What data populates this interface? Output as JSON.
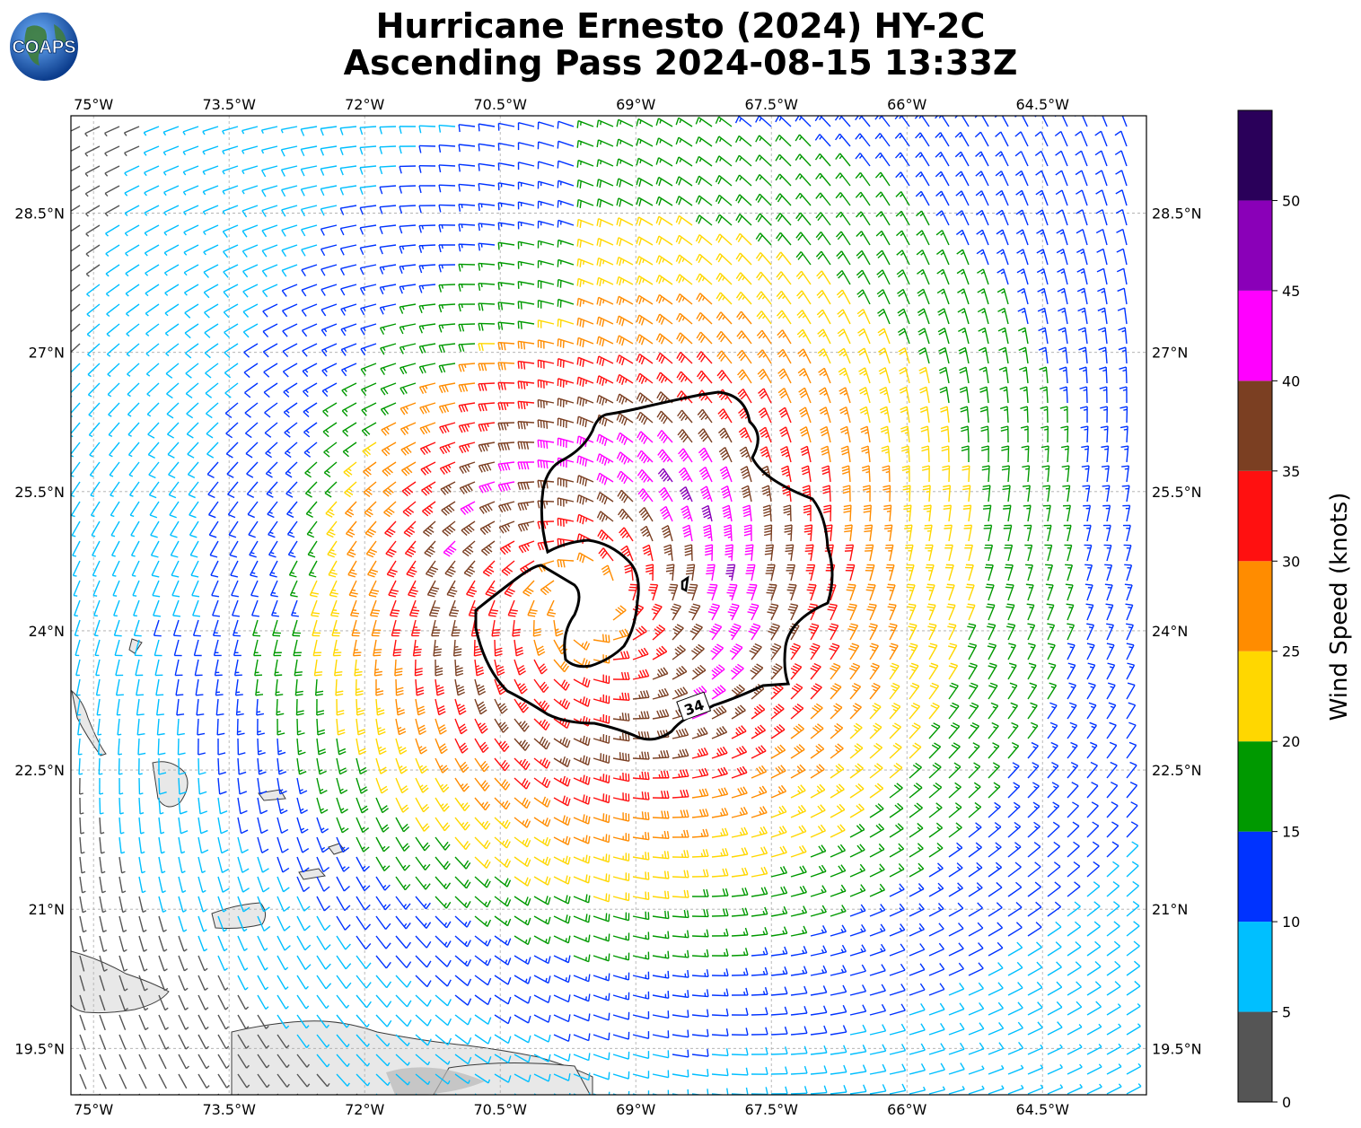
{
  "header": {
    "title_line1": "Hurricane Ernesto (2024) HY-2C",
    "title_line2": "Ascending Pass 2024-08-15 13:33Z",
    "logo_text": "COAPS"
  },
  "map": {
    "lon_range": [
      -75.25,
      -63.35
    ],
    "lat_range": [
      19.0,
      29.55
    ],
    "lon_ticks": [
      "75°W",
      "73.5°W",
      "72°W",
      "70.5°W",
      "69°W",
      "67.5°W",
      "66°W",
      "64.5°W"
    ],
    "lon_tick_values": [
      -75,
      -73.5,
      -72,
      -70.5,
      -69,
      -67.5,
      -66,
      -64.5
    ],
    "lat_ticks": [
      "28.5°N",
      "27°N",
      "25.5°N",
      "24°N",
      "22.5°N",
      "21°N",
      "19.5°N"
    ],
    "lat_tick_values": [
      28.5,
      27,
      25.5,
      24,
      22.5,
      21,
      19.5
    ],
    "gridlines": true,
    "contour_label": "34",
    "storm_center": {
      "lon": -69.55,
      "lat": 24.3
    }
  },
  "colorbar": {
    "title": "Wind Speed (knots)",
    "tick_labels": [
      "0",
      "5",
      "10",
      "15",
      "20",
      "25",
      "30",
      "35",
      "40",
      "45",
      "50"
    ],
    "bins": [
      {
        "min": 0,
        "max": 5,
        "color": "#555555"
      },
      {
        "min": 5,
        "max": 10,
        "color": "#00bfff"
      },
      {
        "min": 10,
        "max": 15,
        "color": "#0033ff"
      },
      {
        "min": 15,
        "max": 20,
        "color": "#009900"
      },
      {
        "min": 20,
        "max": 25,
        "color": "#ffd700"
      },
      {
        "min": 25,
        "max": 30,
        "color": "#ff8c00"
      },
      {
        "min": 30,
        "max": 35,
        "color": "#ff1010"
      },
      {
        "min": 35,
        "max": 40,
        "color": "#7b3f22"
      },
      {
        "min": 40,
        "max": 45,
        "color": "#ff00ff"
      },
      {
        "min": 45,
        "max": 50,
        "color": "#8a00b8"
      },
      {
        "min": 50,
        "max": 55,
        "color": "#2a005a"
      }
    ]
  }
}
